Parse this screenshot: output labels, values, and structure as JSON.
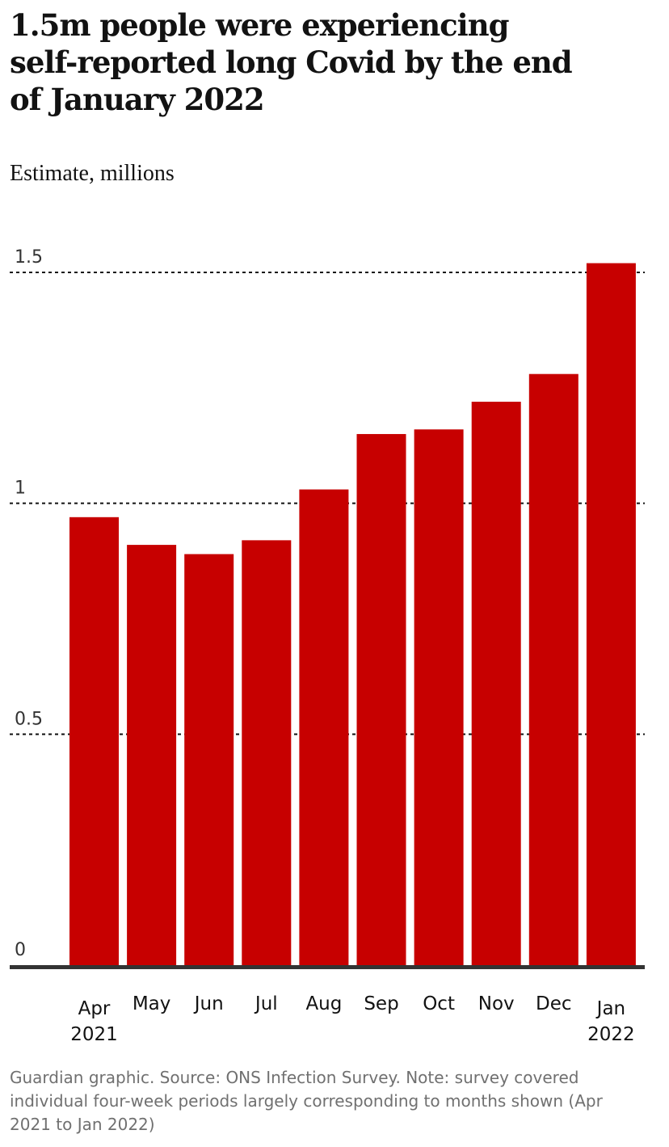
{
  "header": {
    "title": "1.5m people were experiencing self-reported long Covid by the end of January 2022",
    "subtitle": "Estimate, millions"
  },
  "footer": {
    "source": "Guardian graphic. Source: ONS Infection Survey. Note: survey covered individual four-week periods largely corresponding to months shown (Apr 2021 to Jan 2022)"
  },
  "chart_data": {
    "type": "bar",
    "categories": [
      "Apr 2021",
      "May",
      "Jun",
      "Jul",
      "Aug",
      "Sep",
      "Oct",
      "Nov",
      "Dec",
      "Jan 2022"
    ],
    "category_lines": [
      [
        "Apr",
        "2021"
      ],
      [
        "May"
      ],
      [
        "Jun"
      ],
      [
        "Jul"
      ],
      [
        "Aug"
      ],
      [
        "Sep"
      ],
      [
        "Oct"
      ],
      [
        "Nov"
      ],
      [
        "Dec"
      ],
      [
        "Jan",
        "2022"
      ]
    ],
    "values": [
      0.97,
      0.91,
      0.89,
      0.92,
      1.03,
      1.15,
      1.16,
      1.22,
      1.28,
      1.52
    ],
    "ylabel": "Estimate, millions",
    "ylim": [
      0,
      1.5
    ],
    "yticks": [
      0,
      0.5,
      1,
      1.5
    ],
    "ytick_labels": [
      "0",
      "0.5",
      "1",
      "1.5"
    ],
    "grid": true,
    "bar_color": "#c70000",
    "grid_color": "#121212",
    "axis_color": "#333333"
  }
}
